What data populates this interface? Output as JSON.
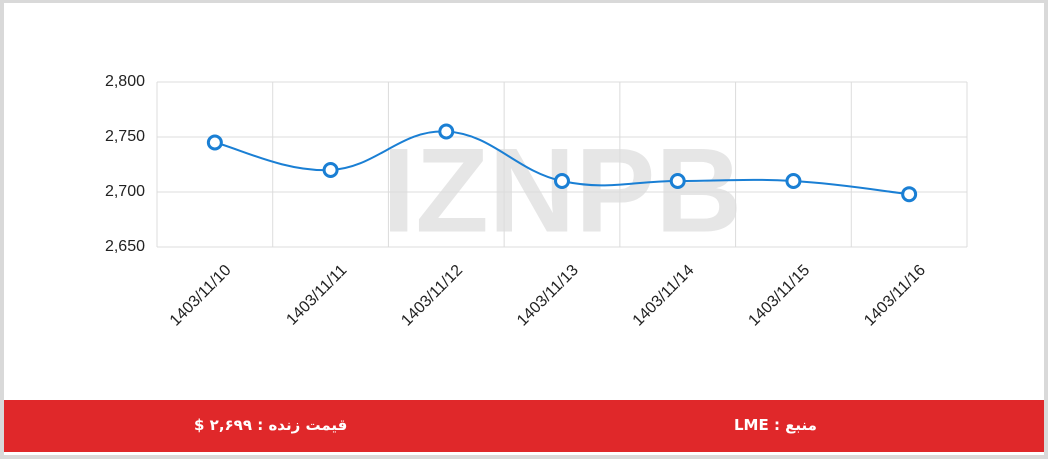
{
  "watermark": "IZNPB",
  "chart_data": {
    "type": "line",
    "categories": [
      "1403/11/10",
      "1403/11/11",
      "1403/11/12",
      "1403/11/13",
      "1403/11/14",
      "1403/11/15",
      "1403/11/16"
    ],
    "values": [
      2745,
      2720,
      2755,
      2710,
      2710,
      2710,
      2698
    ],
    "color": "#1a7fd4",
    "ylim": [
      2650,
      2800
    ],
    "yticks": [
      {
        "value": 2650,
        "label": "2,650"
      },
      {
        "value": 2700,
        "label": "2,700"
      },
      {
        "value": 2750,
        "label": "2,750"
      },
      {
        "value": 2800,
        "label": "2,800"
      }
    ],
    "grid": true
  },
  "footer": {
    "live_price": "قیمت زنده : ۲,۶۹۹ $",
    "source": "منبع : LME"
  }
}
